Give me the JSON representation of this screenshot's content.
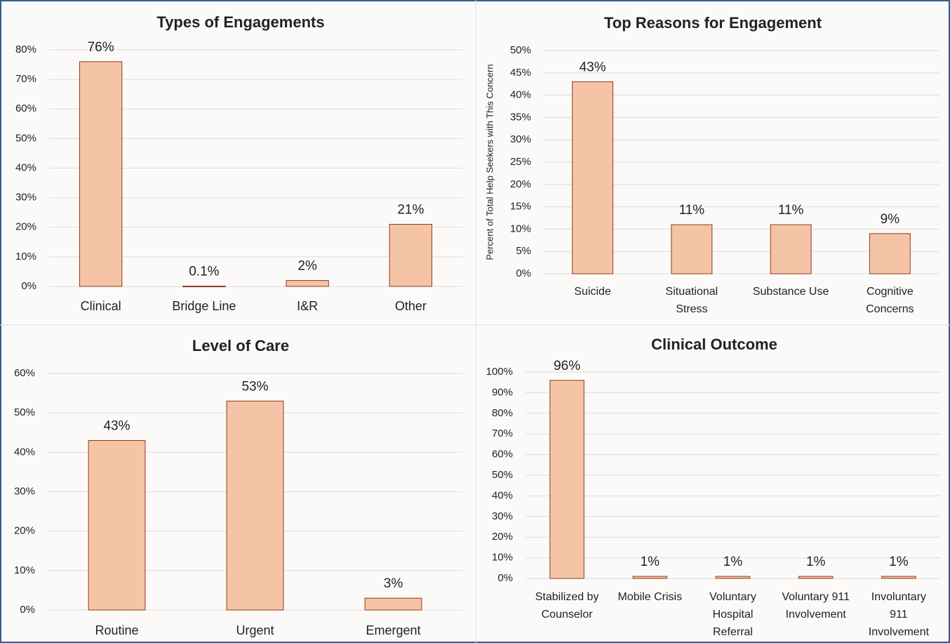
{
  "chart_data": [
    {
      "type": "bar",
      "title": "Types of Engagements",
      "categories": [
        "Clinical",
        "Bridge Line",
        "I&R",
        "Other"
      ],
      "values": [
        76,
        0.1,
        2,
        21
      ],
      "value_labels": [
        "76%",
        "0.1%",
        "2%",
        "21%"
      ],
      "color": "#f5c4a6",
      "ylim": [
        0,
        80
      ],
      "yticks": [
        {
          "value": 0,
          "label": "0%"
        },
        {
          "value": 10,
          "label": "10%"
        },
        {
          "value": 20,
          "label": "20%"
        },
        {
          "value": 30,
          "label": "30%"
        },
        {
          "value": 40,
          "label": "40%"
        },
        {
          "value": 50,
          "label": "50%"
        },
        {
          "value": 60,
          "label": "60%"
        },
        {
          "value": 70,
          "label": "70%"
        },
        {
          "value": 80,
          "label": "80%"
        }
      ],
      "grid": true
    },
    {
      "type": "bar",
      "title": "Top Reasons for Engagement",
      "ylabel": "Percent of Total Help Seekers with This Concern",
      "categories": [
        "Suicide",
        "Situational Stress",
        "Substance Use",
        "Cognitive Concerns"
      ],
      "values": [
        43,
        11,
        11,
        9
      ],
      "value_labels": [
        "43%",
        "11%",
        "11%",
        "9%"
      ],
      "color": "#f5c4a6",
      "ylim": [
        0,
        50
      ],
      "yticks": [
        {
          "value": 0,
          "label": "0%"
        },
        {
          "value": 5,
          "label": "5%"
        },
        {
          "value": 10,
          "label": "10%"
        },
        {
          "value": 15,
          "label": "15%"
        },
        {
          "value": 20,
          "label": "20%"
        },
        {
          "value": 25,
          "label": "25%"
        },
        {
          "value": 30,
          "label": "30%"
        },
        {
          "value": 35,
          "label": "35%"
        },
        {
          "value": 40,
          "label": "40%"
        },
        {
          "value": 45,
          "label": "45%"
        },
        {
          "value": 50,
          "label": "50%"
        }
      ],
      "grid": true
    },
    {
      "type": "bar",
      "title": "Level of Care",
      "categories": [
        "Routine",
        "Urgent",
        "Emergent"
      ],
      "values": [
        43,
        53,
        3
      ],
      "value_labels": [
        "43%",
        "53%",
        "3%"
      ],
      "color": "#f5c4a6",
      "ylim": [
        0,
        60
      ],
      "yticks": [
        {
          "value": 0,
          "label": "0%"
        },
        {
          "value": 10,
          "label": "10%"
        },
        {
          "value": 20,
          "label": "20%"
        },
        {
          "value": 30,
          "label": "30%"
        },
        {
          "value": 40,
          "label": "40%"
        },
        {
          "value": 50,
          "label": "50%"
        },
        {
          "value": 60,
          "label": "60%"
        }
      ],
      "grid": true
    },
    {
      "type": "bar",
      "title": "Clinical Outcome",
      "categories": [
        "Stabilized by Counselor",
        "Mobile Crisis",
        "Voluntary Hospital Referral",
        "Voluntary 911 Involvement",
        "Involuntary 911 Involvement"
      ],
      "values": [
        96,
        1,
        1,
        1,
        1
      ],
      "value_labels": [
        "96%",
        "1%",
        "1%",
        "1%",
        "1%"
      ],
      "color": "#f5c4a6",
      "ylim": [
        0,
        100
      ],
      "yticks": [
        {
          "value": 0,
          "label": "0%"
        },
        {
          "value": 10,
          "label": "10%"
        },
        {
          "value": 20,
          "label": "20%"
        },
        {
          "value": 30,
          "label": "30%"
        },
        {
          "value": 40,
          "label": "40%"
        },
        {
          "value": 50,
          "label": "50%"
        },
        {
          "value": 60,
          "label": "60%"
        },
        {
          "value": 70,
          "label": "70%"
        },
        {
          "value": 80,
          "label": "80%"
        },
        {
          "value": 90,
          "label": "90%"
        },
        {
          "value": 100,
          "label": "100%"
        }
      ],
      "grid": true
    }
  ]
}
